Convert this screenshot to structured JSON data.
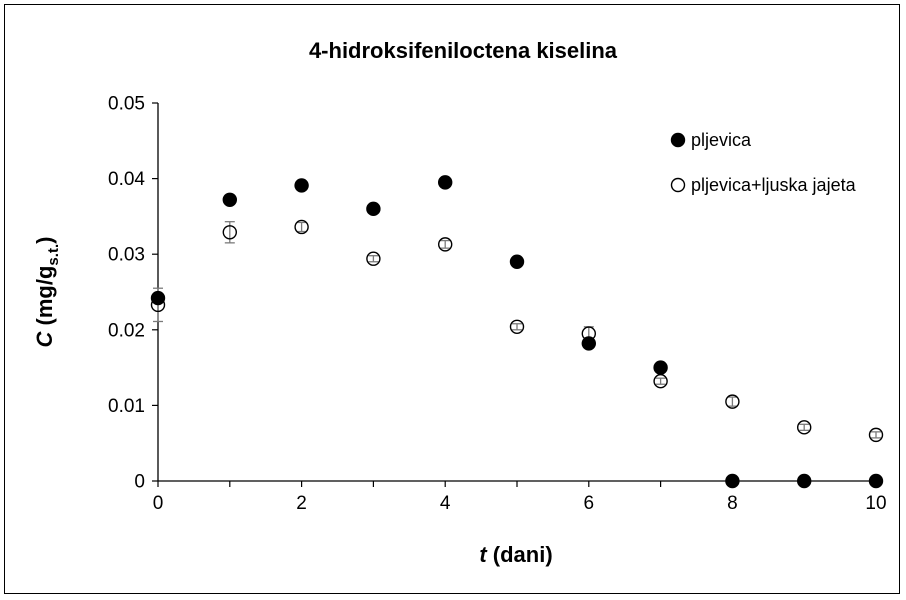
{
  "chart_data": {
    "type": "scatter",
    "title": "4-hidroksifeniloctena kiselina",
    "xlabel": {
      "italic": "t",
      "rest": " (dani)"
    },
    "ylabel": {
      "italic": "C",
      "rest": " (mg/g",
      "sub": "s.t.",
      "close": ")"
    },
    "xlim": [
      0,
      10
    ],
    "ylim": [
      0,
      0.05
    ],
    "xticks": [
      "0",
      "2",
      "4",
      "6",
      "8",
      "10"
    ],
    "yticks": [
      "0",
      "0.01",
      "0.02",
      "0.03",
      "0.04",
      "0.05"
    ],
    "legend_position": "top-right",
    "grid": false,
    "series": [
      {
        "name": "pljevica",
        "marker": "filled-circle",
        "color": "#000000",
        "x": [
          0,
          1,
          2,
          3,
          4,
          5,
          6,
          7,
          8,
          9,
          10
        ],
        "y": [
          0.0242,
          0.0372,
          0.0391,
          0.036,
          0.0395,
          0.029,
          0.0182,
          0.015,
          0.0,
          0.0,
          0.0
        ],
        "err": [
          0.0004,
          0.0003,
          0.0003,
          0.0003,
          0.0003,
          0.0003,
          0.0003,
          0.0003,
          0,
          0,
          0
        ]
      },
      {
        "name": "pljevica+ljuska jajeta",
        "marker": "open-circle",
        "color": "#000000",
        "x": [
          0,
          1,
          2,
          3,
          4,
          5,
          6,
          7,
          8,
          9,
          10
        ],
        "y": [
          0.0233,
          0.0329,
          0.0336,
          0.0294,
          0.0313,
          0.0204,
          0.0195,
          0.0132,
          0.0105,
          0.0071,
          0.0061
        ],
        "err": [
          0.0022,
          0.0014,
          0.0006,
          0.0004,
          0.0005,
          0.0004,
          0.0009,
          0.0004,
          0.0006,
          0.0004,
          0.0004
        ]
      }
    ]
  }
}
